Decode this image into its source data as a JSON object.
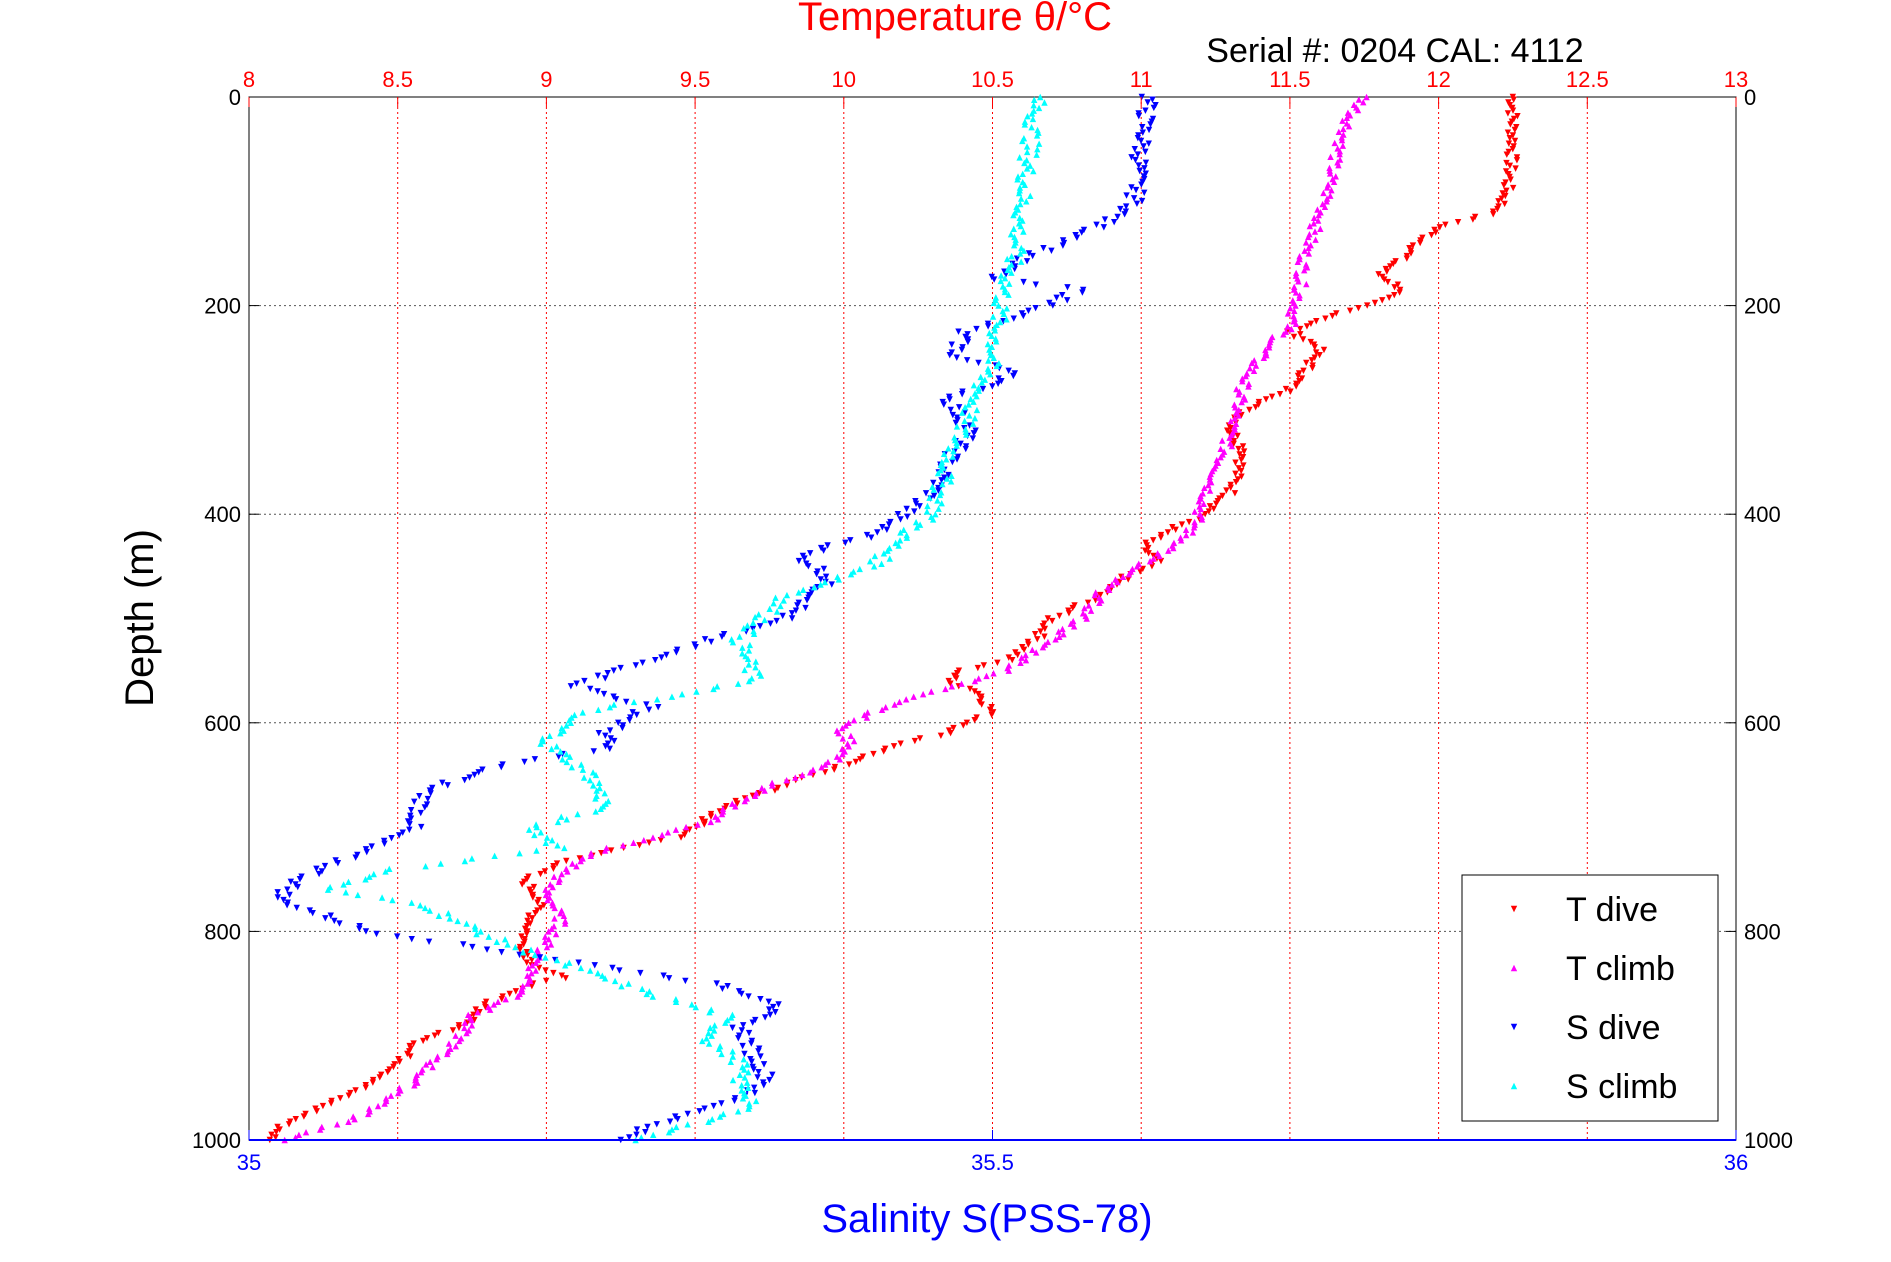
{
  "chart_data": {
    "type": "scatter",
    "title": "Temperature θ/°C",
    "subtitle": "Serial #: 0204  CAL: 4112",
    "ylabel": "Depth (m)",
    "xlabel": "Salinity S(PSS-78)",
    "top_axis": {
      "label": "Temperature θ/°C",
      "range": [
        8,
        13
      ],
      "ticks": [
        "8",
        "8.5",
        "9",
        "9.5",
        "10",
        "10.5",
        "11",
        "11.5",
        "12",
        "12.5",
        "13"
      ],
      "color": "#ff0000"
    },
    "bottom_axis": {
      "label": "Salinity S(PSS-78)",
      "range": [
        35,
        36
      ],
      "ticks": [
        "35",
        "35.5",
        "36"
      ],
      "color": "#0000ff"
    },
    "y_axis": {
      "range": [
        0,
        1000
      ],
      "reversed": true,
      "ticks": [
        "0",
        "200",
        "400",
        "600",
        "800",
        "1000"
      ]
    },
    "grid": true,
    "legend_position": "bottom-right",
    "series": [
      {
        "name": "T dive",
        "axis": "temperature",
        "color": "#ff0000",
        "marker": "triangle-down",
        "points": [
          [
            12.25,
            0
          ],
          [
            12.25,
            50
          ],
          [
            12.23,
            90
          ],
          [
            12.2,
            110
          ],
          [
            12.0,
            125
          ],
          [
            11.9,
            150
          ],
          [
            11.8,
            170
          ],
          [
            11.88,
            185
          ],
          [
            11.75,
            200
          ],
          [
            11.6,
            215
          ],
          [
            11.5,
            225
          ],
          [
            11.6,
            240
          ],
          [
            11.55,
            265
          ],
          [
            11.48,
            285
          ],
          [
            11.35,
            300
          ],
          [
            11.3,
            320
          ],
          [
            11.35,
            340
          ],
          [
            11.3,
            380
          ],
          [
            11.22,
            400
          ],
          [
            11.1,
            415
          ],
          [
            11.0,
            430
          ],
          [
            11.05,
            445
          ],
          [
            10.95,
            460
          ],
          [
            10.85,
            480
          ],
          [
            10.7,
            500
          ],
          [
            10.65,
            520
          ],
          [
            10.55,
            540
          ],
          [
            10.4,
            550
          ],
          [
            10.35,
            560
          ],
          [
            10.45,
            570
          ],
          [
            10.5,
            590
          ],
          [
            10.35,
            610
          ],
          [
            10.2,
            620
          ],
          [
            10.0,
            640
          ],
          [
            9.8,
            660
          ],
          [
            9.6,
            680
          ],
          [
            9.55,
            690
          ],
          [
            9.45,
            710
          ],
          [
            9.25,
            720
          ],
          [
            9.05,
            735
          ],
          [
            8.92,
            750
          ],
          [
            8.98,
            770
          ],
          [
            8.95,
            790
          ],
          [
            8.92,
            810
          ],
          [
            8.95,
            830
          ],
          [
            9.05,
            845
          ],
          [
            8.9,
            855
          ],
          [
            8.8,
            870
          ],
          [
            8.72,
            890
          ],
          [
            8.55,
            910
          ],
          [
            8.5,
            930
          ],
          [
            8.42,
            945
          ],
          [
            8.3,
            960
          ],
          [
            8.2,
            975
          ],
          [
            8.12,
            985
          ],
          [
            8.07,
            1000
          ]
        ]
      },
      {
        "name": "T climb",
        "axis": "temperature",
        "color": "#ff00ff",
        "marker": "triangle-up",
        "points": [
          [
            11.75,
            0
          ],
          [
            11.7,
            20
          ],
          [
            11.65,
            60
          ],
          [
            11.62,
            100
          ],
          [
            11.55,
            150
          ],
          [
            11.53,
            190
          ],
          [
            11.5,
            220
          ],
          [
            11.42,
            240
          ],
          [
            11.35,
            270
          ],
          [
            11.32,
            300
          ],
          [
            11.28,
            340
          ],
          [
            11.22,
            380
          ],
          [
            11.18,
            410
          ],
          [
            11.12,
            430
          ],
          [
            10.98,
            450
          ],
          [
            10.88,
            470
          ],
          [
            10.8,
            500
          ],
          [
            10.7,
            520
          ],
          [
            10.55,
            550
          ],
          [
            10.3,
            570
          ],
          [
            10.1,
            590
          ],
          [
            9.98,
            605
          ],
          [
            10.03,
            620
          ],
          [
            9.95,
            640
          ],
          [
            9.75,
            660
          ],
          [
            9.65,
            675
          ],
          [
            9.55,
            695
          ],
          [
            9.35,
            710
          ],
          [
            9.15,
            725
          ],
          [
            9.05,
            745
          ],
          [
            9.0,
            760
          ],
          [
            9.05,
            790
          ],
          [
            8.98,
            820
          ],
          [
            8.95,
            840
          ],
          [
            8.92,
            860
          ],
          [
            8.75,
            880
          ],
          [
            8.7,
            905
          ],
          [
            8.62,
            925
          ],
          [
            8.55,
            945
          ],
          [
            8.45,
            965
          ],
          [
            8.35,
            980
          ],
          [
            8.12,
            1000
          ]
        ]
      },
      {
        "name": "S dive",
        "axis": "salinity",
        "color": "#0000ff",
        "marker": "triangle-down",
        "points": [
          [
            35.605,
            0
          ],
          [
            35.6,
            50
          ],
          [
            35.595,
            105
          ],
          [
            35.57,
            125
          ],
          [
            35.55,
            140
          ],
          [
            35.52,
            155
          ],
          [
            35.5,
            175
          ],
          [
            35.56,
            185
          ],
          [
            35.53,
            205
          ],
          [
            35.48,
            225
          ],
          [
            35.475,
            250
          ],
          [
            35.52,
            265
          ],
          [
            35.47,
            290
          ],
          [
            35.485,
            320
          ],
          [
            35.47,
            350
          ],
          [
            35.46,
            380
          ],
          [
            35.44,
            400
          ],
          [
            35.42,
            420
          ],
          [
            35.37,
            440
          ],
          [
            35.39,
            460
          ],
          [
            35.38,
            480
          ],
          [
            35.36,
            500
          ],
          [
            35.31,
            520
          ],
          [
            35.26,
            545
          ],
          [
            35.22,
            565
          ],
          [
            35.27,
            585
          ],
          [
            35.24,
            610
          ],
          [
            35.24,
            625
          ],
          [
            35.17,
            640
          ],
          [
            35.12,
            665
          ],
          [
            35.11,
            700
          ],
          [
            35.05,
            740
          ],
          [
            35.03,
            755
          ],
          [
            35.02,
            770
          ],
          [
            35.08,
            800
          ],
          [
            35.22,
            830
          ],
          [
            35.31,
            850
          ],
          [
            35.36,
            870
          ],
          [
            35.33,
            890
          ],
          [
            35.34,
            920
          ],
          [
            35.35,
            945
          ],
          [
            35.32,
            965
          ],
          [
            35.275,
            985
          ],
          [
            35.25,
            1000
          ]
        ]
      },
      {
        "name": "S climb",
        "axis": "salinity",
        "color": "#00ffff",
        "marker": "triangle-up",
        "points": [
          [
            35.53,
            0
          ],
          [
            35.525,
            50
          ],
          [
            35.52,
            100
          ],
          [
            35.515,
            150
          ],
          [
            35.505,
            200
          ],
          [
            35.5,
            250
          ],
          [
            35.485,
            300
          ],
          [
            35.47,
            350
          ],
          [
            35.46,
            400
          ],
          [
            35.44,
            420
          ],
          [
            35.42,
            450
          ],
          [
            35.36,
            480
          ],
          [
            35.33,
            520
          ],
          [
            35.34,
            560
          ],
          [
            35.3,
            570
          ],
          [
            35.22,
            590
          ],
          [
            35.2,
            620
          ],
          [
            35.23,
            650
          ],
          [
            35.24,
            680
          ],
          [
            35.19,
            700
          ],
          [
            35.21,
            720
          ],
          [
            35.1,
            740
          ],
          [
            35.05,
            760
          ],
          [
            35.12,
            775
          ],
          [
            35.14,
            790
          ],
          [
            35.17,
            810
          ],
          [
            35.22,
            835
          ],
          [
            35.27,
            860
          ],
          [
            35.32,
            880
          ],
          [
            35.31,
            905
          ],
          [
            35.33,
            925
          ],
          [
            35.33,
            945
          ],
          [
            35.34,
            965
          ],
          [
            35.3,
            985
          ],
          [
            35.26,
            1000
          ]
        ]
      }
    ]
  }
}
